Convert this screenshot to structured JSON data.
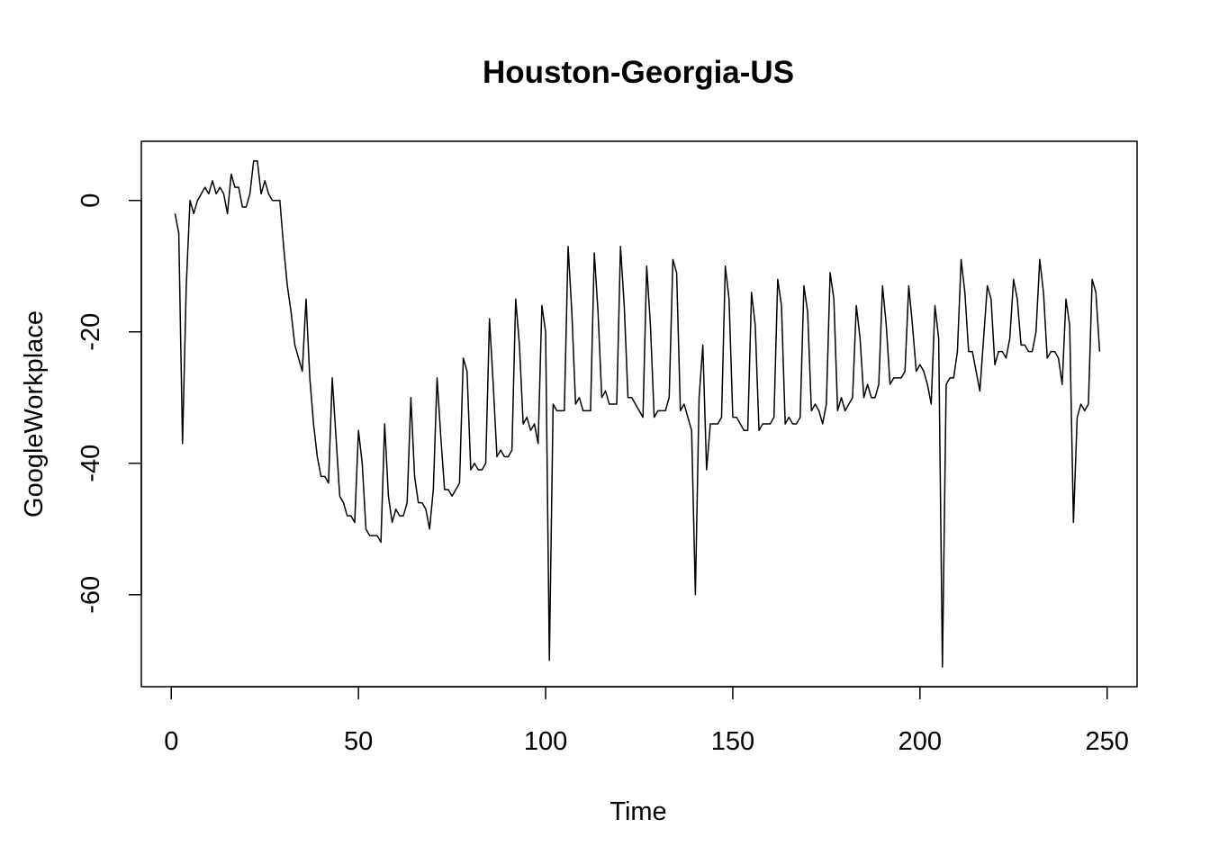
{
  "chart_data": {
    "type": "line",
    "title": "Houston-Georgia-US",
    "xlabel": "Time",
    "ylabel": "GoogleWorkplace",
    "xlim": [
      -8,
      258
    ],
    "ylim": [
      -74,
      9
    ],
    "xticks": [
      0,
      50,
      100,
      150,
      200,
      250
    ],
    "yticks": [
      0,
      -20,
      -40,
      -60
    ],
    "xtick_labels": [
      "0",
      "50",
      "100",
      "150",
      "200",
      "250"
    ],
    "ytick_labels": [
      "0",
      "-20",
      "-40",
      "-60"
    ],
    "grid": false,
    "legend": "none",
    "line_color": "#000000",
    "series": [
      {
        "x_start": 1,
        "values": [
          -2,
          -5,
          -37,
          -13,
          0,
          -2,
          0,
          1,
          2,
          1,
          3,
          1,
          2,
          1,
          -2,
          4,
          2,
          2,
          -1,
          -1,
          1,
          6,
          6,
          1,
          3,
          1,
          0,
          0,
          0,
          -7,
          -13,
          -17,
          -22,
          -24,
          -26,
          -15,
          -27,
          -34,
          -39,
          -42,
          -42,
          -43,
          -27,
          -36,
          -45,
          -46,
          -48,
          -48,
          -49,
          -35,
          -40,
          -50,
          -51,
          -51,
          -51,
          -52,
          -34,
          -45,
          -49,
          -47,
          -48,
          -48,
          -46,
          -30,
          -42,
          -46,
          -46,
          -47,
          -50,
          -44,
          -27,
          -36,
          -44,
          -44,
          -45,
          -44,
          -43,
          -24,
          -26,
          -41,
          -40,
          -41,
          -41,
          -40,
          -18,
          -28,
          -39,
          -38,
          -39,
          -39,
          -38,
          -15,
          -22,
          -34,
          -33,
          -35,
          -34,
          -37,
          -16,
          -20,
          -70,
          -31,
          -32,
          -32,
          -32,
          -7,
          -17,
          -31,
          -30,
          -32,
          -32,
          -32,
          -8,
          -17,
          -30,
          -29,
          -31,
          -31,
          -31,
          -7,
          -16,
          -30,
          -30,
          -31,
          -32,
          -33,
          -10,
          -19,
          -33,
          -32,
          -32,
          -32,
          -30,
          -9,
          -11,
          -32,
          -31,
          -33,
          -35,
          -60,
          -30,
          -22,
          -41,
          -34,
          -34,
          -34,
          -33,
          -10,
          -15,
          -33,
          -33,
          -34,
          -35,
          -35,
          -14,
          -19,
          -35,
          -34,
          -34,
          -34,
          -33,
          -12,
          -16,
          -34,
          -33,
          -34,
          -34,
          -33,
          -13,
          -17,
          -32,
          -31,
          -32,
          -34,
          -31,
          -11,
          -15,
          -32,
          -30,
          -32,
          -31,
          -30,
          -16,
          -21,
          -30,
          -28,
          -30,
          -30,
          -28,
          -13,
          -19,
          -28,
          -27,
          -27,
          -27,
          -26,
          -13,
          -19,
          -26,
          -25,
          -26,
          -28,
          -31,
          -16,
          -21,
          -71,
          -28,
          -27,
          -27,
          -23,
          -9,
          -14,
          -23,
          -23,
          -26,
          -29,
          -21,
          -13,
          -15,
          -25,
          -23,
          -23,
          -24,
          -21,
          -12,
          -15,
          -22,
          -22,
          -23,
          -23,
          -20,
          -9,
          -14,
          -24,
          -23,
          -23,
          -24,
          -28,
          -15,
          -19,
          -49,
          -33,
          -31,
          -32,
          -31,
          -12,
          -14,
          -23
        ]
      }
    ]
  }
}
